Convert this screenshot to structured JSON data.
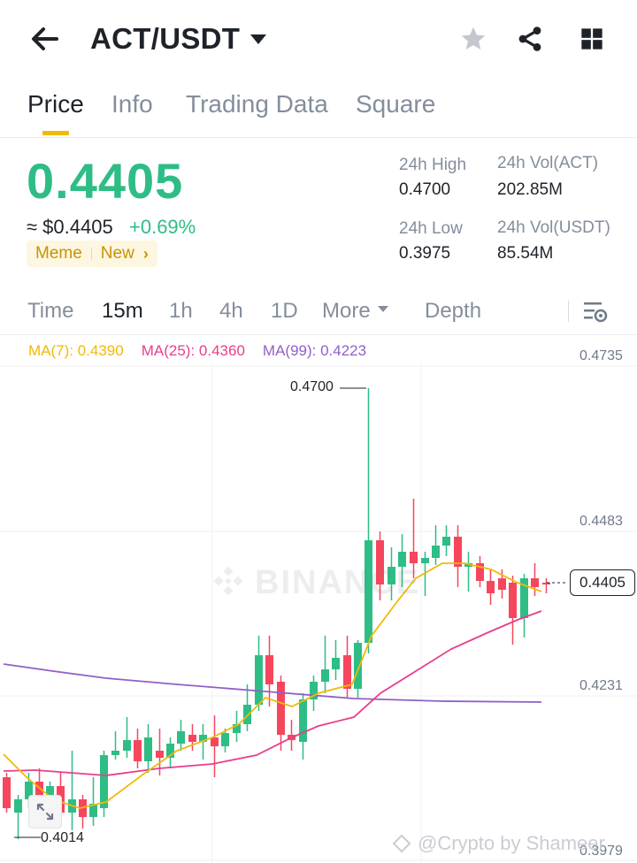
{
  "header": {
    "pair": "ACT/USDT",
    "icons": [
      "back-arrow-icon",
      "star-icon",
      "share-icon",
      "grid-menu-icon"
    ]
  },
  "tabs": [
    {
      "label": "Price",
      "active": true
    },
    {
      "label": "Info",
      "active": false
    },
    {
      "label": "Trading Data",
      "active": false
    },
    {
      "label": "Square",
      "active": false
    }
  ],
  "price": {
    "last": "0.4405",
    "usd": "≈ $0.4405",
    "change": "+0.69%",
    "tags": [
      "Meme",
      "New"
    ]
  },
  "stats": {
    "high_label": "24h High",
    "high_value": "0.4700",
    "low_label": "24h Low",
    "low_value": "0.3975",
    "vol_base_label": "24h Vol(ACT)",
    "vol_base_value": "202.85M",
    "vol_quote_label": "24h Vol(USDT)",
    "vol_quote_value": "85.54M"
  },
  "intervals": {
    "items": [
      "Time",
      "15m",
      "1h",
      "4h",
      "1D",
      "More",
      "Depth"
    ],
    "active": "15m"
  },
  "chart": {
    "ma7_label": "MA(7): 0.4390",
    "ma25_label": "MA(25): 0.4360",
    "ma99_label": "MA(99): 0.4223",
    "axis": [
      "0.4735",
      "0.4483",
      "0.4231",
      "0.3979"
    ],
    "current_price": "0.4405",
    "high_marker": "0.4700",
    "low_marker": "0.4014",
    "watermark": "BINANCE",
    "credit": "@Crypto by Shameer",
    "colors": {
      "up": "#2ebd85",
      "down": "#f6465d",
      "ma7": "#f0b90b",
      "ma25": "#e83e8c",
      "ma99": "#8f60c8"
    }
  }
}
